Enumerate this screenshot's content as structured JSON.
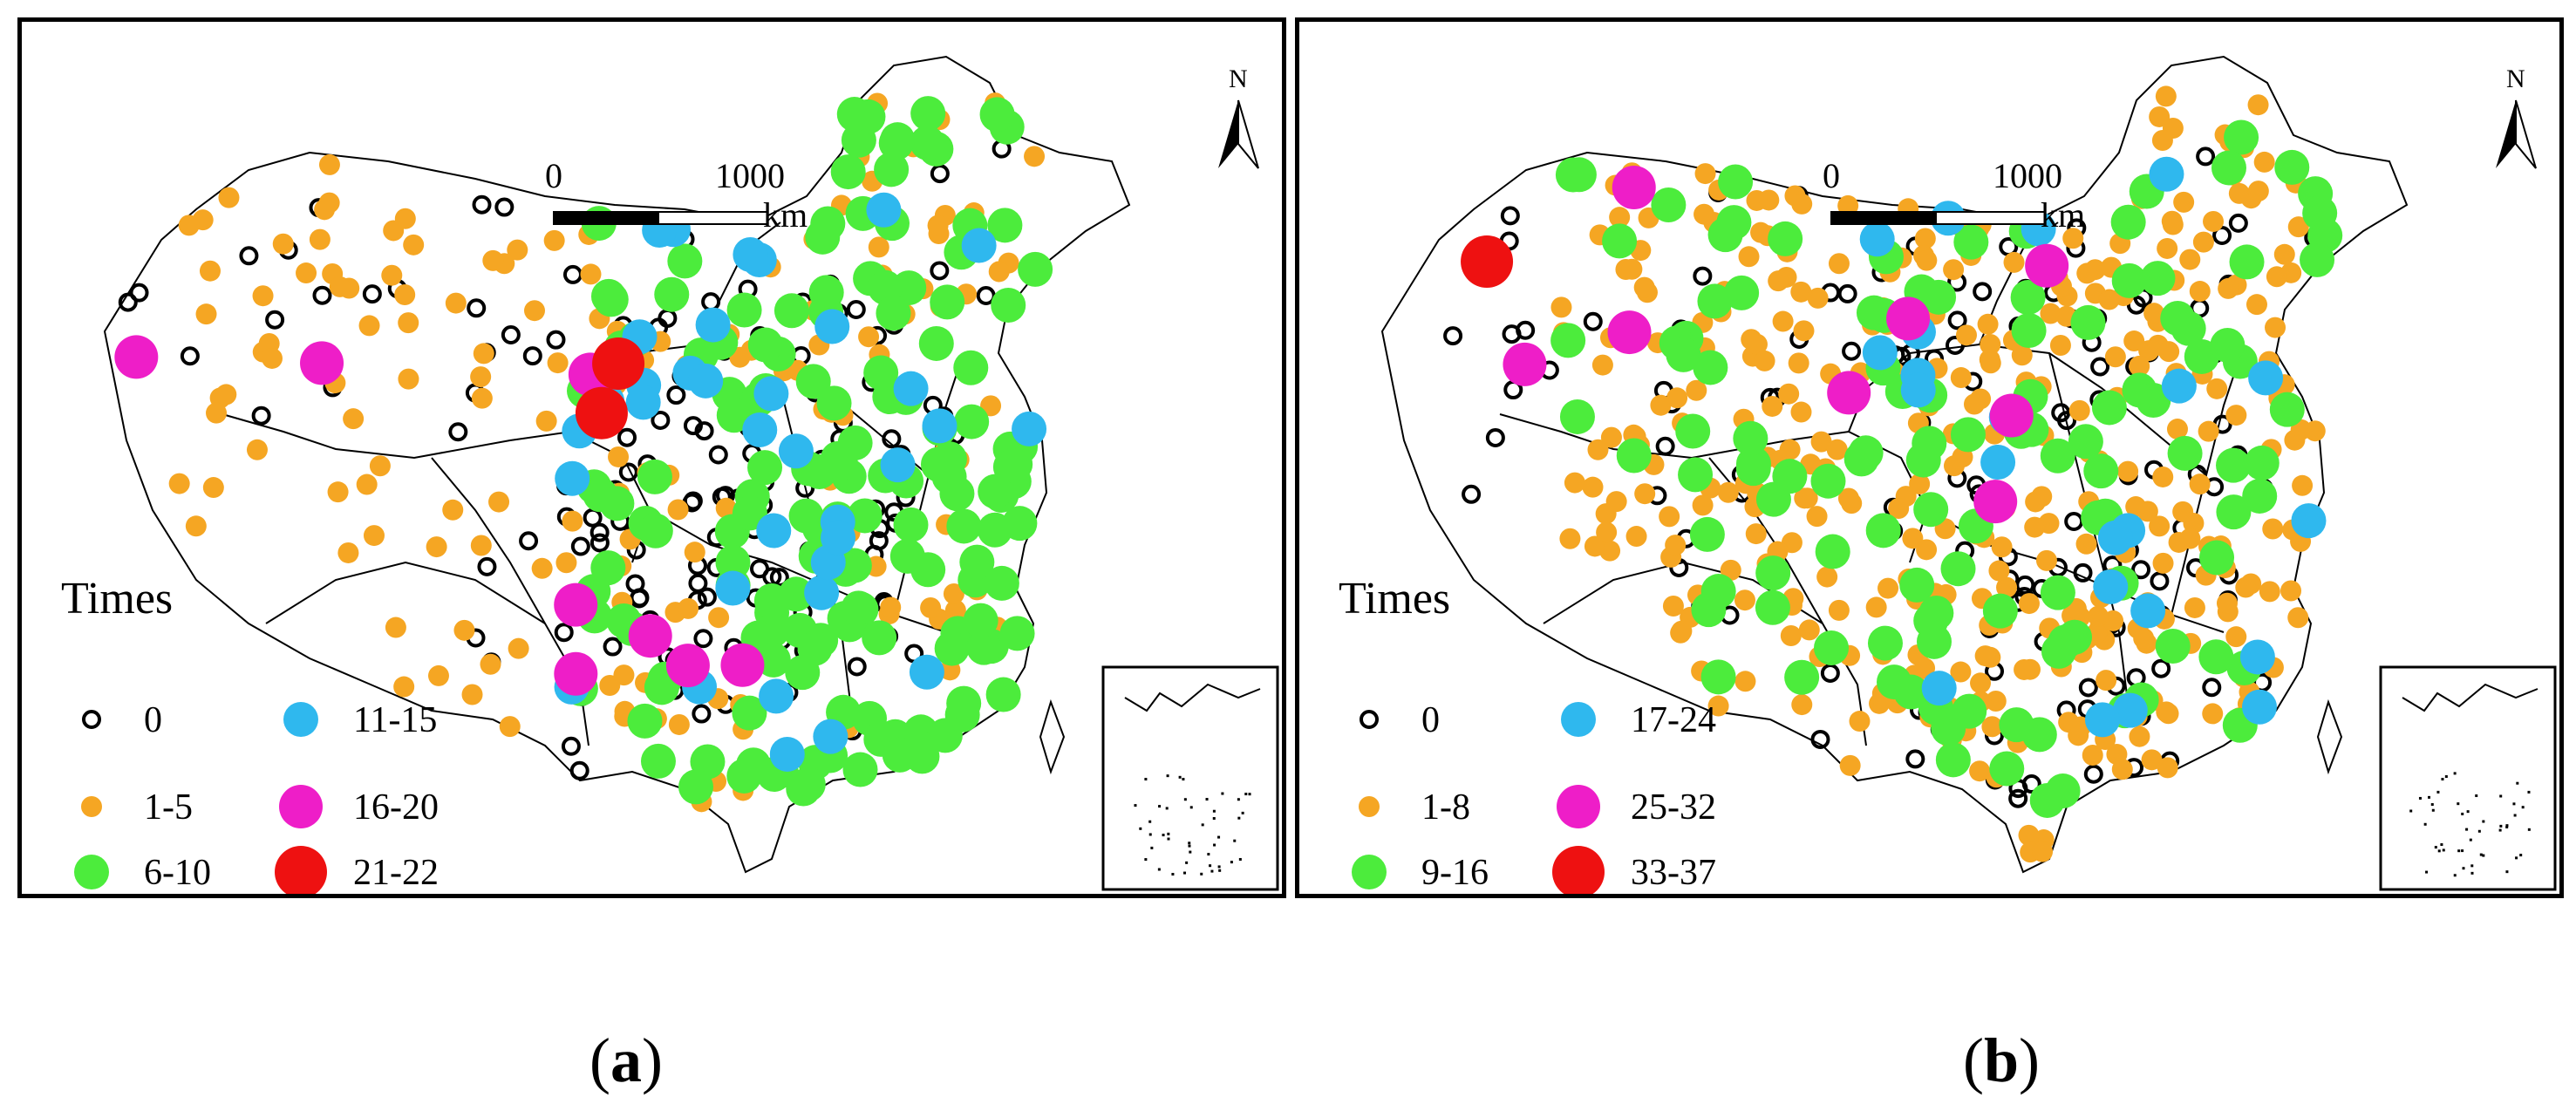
{
  "panels": [
    {
      "id": "a",
      "caption_letter": "a",
      "scale": {
        "zero": "0",
        "distance": "1000",
        "unit": "km"
      },
      "north": "N",
      "legend": {
        "title": "Times",
        "classes": [
          {
            "label": "0",
            "color": "#ffffff",
            "outline": "#000000",
            "size": "hollow"
          },
          {
            "label": "1-5",
            "color": "#f5a623",
            "size": "small"
          },
          {
            "label": "6-10",
            "color": "#4cec3c",
            "size": "medium"
          },
          {
            "label": "11-15",
            "color": "#2fb8ee",
            "size": "medium"
          },
          {
            "label": "16-20",
            "color": "#ee1ec8",
            "size": "large"
          },
          {
            "label": "21-22",
            "color": "#ee1111",
            "size": "largest"
          }
        ]
      }
    },
    {
      "id": "b",
      "caption_letter": "b",
      "scale": {
        "zero": "0",
        "distance": "1000",
        "unit": "km"
      },
      "north": "N",
      "legend": {
        "title": "Times",
        "classes": [
          {
            "label": "0",
            "color": "#ffffff",
            "outline": "#000000",
            "size": "hollow"
          },
          {
            "label": "1-8",
            "color": "#f5a623",
            "size": "small"
          },
          {
            "label": "9-16",
            "color": "#4cec3c",
            "size": "medium"
          },
          {
            "label": "17-24",
            "color": "#2fb8ee",
            "size": "medium"
          },
          {
            "label": "25-32",
            "color": "#ee1ec8",
            "size": "large"
          },
          {
            "label": "33-37",
            "color": "#ee1111",
            "size": "largest"
          }
        ]
      }
    }
  ]
}
